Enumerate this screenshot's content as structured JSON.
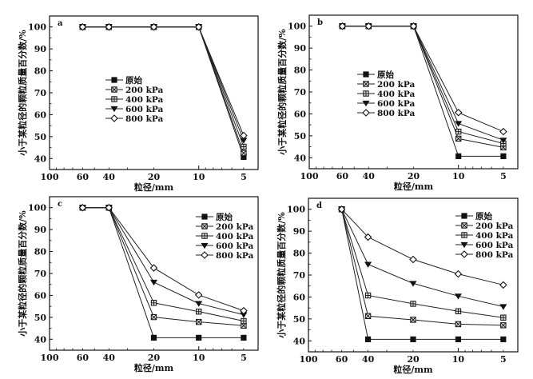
{
  "chart_data": [
    {
      "type": "line",
      "panel": "a",
      "xlabel": "粒径/mm",
      "ylabel": "小于某粒径的颗粒质量百分数/%",
      "xscale": "log-reversed",
      "xlim": [
        100,
        4
      ],
      "ylim": [
        35,
        105
      ],
      "x_ticks": [
        100,
        60,
        40,
        20,
        10,
        5
      ],
      "y_ticks": [
        40,
        50,
        60,
        70,
        80,
        90,
        100
      ],
      "legend_position": "center-left",
      "x": [
        60,
        40,
        20,
        10,
        5
      ],
      "series": [
        {
          "name": "原始",
          "marker": "square-filled",
          "values": [
            100,
            100,
            100,
            100,
            40.7
          ]
        },
        {
          "name": "200 kPa",
          "marker": "square-cross",
          "values": [
            100,
            100,
            100,
            100,
            42.5
          ]
        },
        {
          "name": "400 kPa",
          "marker": "square-x",
          "values": [
            100,
            100,
            100,
            100,
            45.4
          ]
        },
        {
          "name": "600 kPa",
          "marker": "triangle-down",
          "values": [
            100,
            100,
            100,
            100,
            48.3
          ]
        },
        {
          "name": "800 kPa",
          "marker": "diamond-open",
          "values": [
            100,
            100,
            100,
            100,
            50.5
          ]
        }
      ]
    },
    {
      "type": "line",
      "panel": "b",
      "xlabel": "粒径/mm",
      "ylabel": "小于某粒径的颗粒质量百分数/%",
      "xscale": "log-reversed",
      "xlim": [
        100,
        4
      ],
      "ylim": [
        35,
        105
      ],
      "x_ticks": [
        100,
        60,
        40,
        20,
        10,
        5
      ],
      "y_ticks": [
        40,
        50,
        60,
        70,
        80,
        90,
        100
      ],
      "legend_position": "center-left",
      "x": [
        60,
        40,
        20,
        10,
        5
      ],
      "series": [
        {
          "name": "原始",
          "marker": "square-filled",
          "values": [
            100,
            100,
            100,
            40.7,
            40.7
          ]
        },
        {
          "name": "200 kPa",
          "marker": "square-cross",
          "values": [
            100,
            100,
            100,
            48.7,
            44.7
          ]
        },
        {
          "name": "400 kPa",
          "marker": "square-x",
          "values": [
            100,
            100,
            100,
            51.9,
            46.5
          ]
        },
        {
          "name": "600 kPa",
          "marker": "triangle-down",
          "values": [
            100,
            100,
            100,
            55.6,
            48.0
          ]
        },
        {
          "name": "800 kPa",
          "marker": "diamond-open",
          "values": [
            100,
            100,
            100,
            60.6,
            51.9
          ]
        }
      ]
    },
    {
      "type": "line",
      "panel": "c",
      "xlabel": "粒径/mm",
      "ylabel": "小于某粒径的颗粒质量百分数/%",
      "xscale": "log-reversed",
      "xlim": [
        100,
        4
      ],
      "ylim": [
        35,
        105
      ],
      "x_ticks": [
        100,
        60,
        40,
        20,
        10,
        5
      ],
      "y_ticks": [
        40,
        50,
        60,
        70,
        80,
        90,
        100
      ],
      "legend_position": "top-right",
      "x": [
        60,
        40,
        20,
        10,
        5
      ],
      "series": [
        {
          "name": "原始",
          "marker": "square-filled",
          "values": [
            100,
            100,
            40.7,
            40.7,
            40.7
          ]
        },
        {
          "name": "200 kPa",
          "marker": "square-cross",
          "values": [
            100,
            100,
            50.1,
            47.9,
            46.2
          ]
        },
        {
          "name": "400 kPa",
          "marker": "square-x",
          "values": [
            100,
            100,
            56.6,
            52.6,
            48.3
          ]
        },
        {
          "name": "600 kPa",
          "marker": "triangle-down",
          "values": [
            100,
            100,
            66.0,
            56.3,
            51.2
          ]
        },
        {
          "name": "800 kPa",
          "marker": "diamond-open",
          "values": [
            100,
            100,
            72.5,
            60.2,
            53.0
          ]
        }
      ]
    },
    {
      "type": "line",
      "panel": "d",
      "xlabel": "粒径/mm",
      "ylabel": "小于某粒径的颗粒质量百分数/%",
      "xscale": "log-reversed",
      "xlim": [
        100,
        4
      ],
      "ylim": [
        35,
        105
      ],
      "x_ticks": [
        100,
        60,
        40,
        20,
        10,
        5
      ],
      "y_ticks": [
        40,
        50,
        60,
        70,
        80,
        90,
        100
      ],
      "legend_position": "top-right",
      "x": [
        60,
        40,
        20,
        10,
        5
      ],
      "series": [
        {
          "name": "原始",
          "marker": "square-filled",
          "values": [
            100,
            40.7,
            40.7,
            40.7,
            40.7
          ]
        },
        {
          "name": "200 kPa",
          "marker": "square-cross",
          "values": [
            100,
            51.3,
            49.6,
            47.6,
            47.1
          ]
        },
        {
          "name": "400 kPa",
          "marker": "square-x",
          "values": [
            100,
            60.7,
            56.9,
            53.5,
            50.6
          ]
        },
        {
          "name": "600 kPa",
          "marker": "triangle-down",
          "values": [
            100,
            74.9,
            66.2,
            60.4,
            55.6
          ]
        },
        {
          "name": "800 kPa",
          "marker": "diamond-open",
          "values": [
            100,
            87.3,
            77.1,
            70.5,
            65.5
          ]
        }
      ]
    }
  ],
  "colors": {
    "line": "#222222",
    "axis": "#111111",
    "background": "#ffffff"
  }
}
